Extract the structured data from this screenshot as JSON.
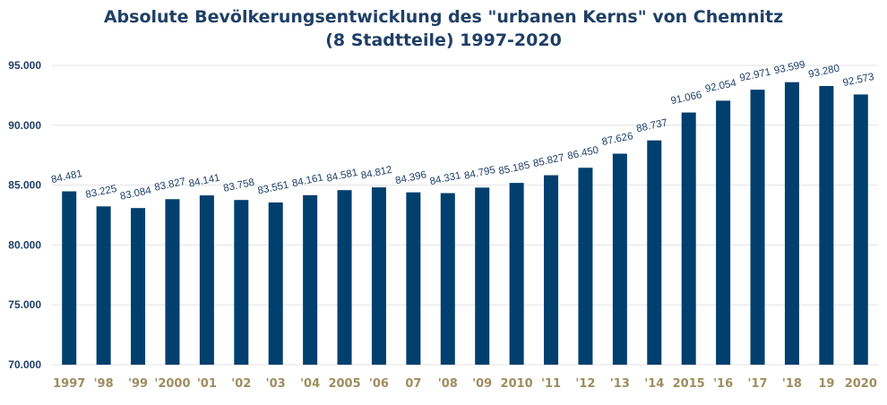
{
  "chart_data": {
    "type": "bar",
    "title_line1": "Absolute Bevölkerungsentwicklung des \"urbanen Kerns\" von Chemnitz",
    "title_line2": "(8 Stadtteile) 1997-2020",
    "categories": [
      "1997",
      "'98",
      "'99",
      "'2000",
      "'01",
      "'02",
      "'03",
      "'04",
      "2005",
      "'06",
      "07",
      "'08",
      "'09",
      "2010",
      "'11",
      "'12",
      "'13",
      "'14",
      "2015",
      "'16",
      "'17",
      "'18",
      "19",
      "2020"
    ],
    "values": [
      84481,
      83225,
      83084,
      83827,
      84141,
      83758,
      83551,
      84161,
      84581,
      84812,
      84396,
      84331,
      84795,
      85185,
      85827,
      86450,
      87626,
      88737,
      91066,
      92054,
      92971,
      93599,
      93280,
      92573
    ],
    "value_labels": [
      "84.481",
      "83.225",
      "83.084",
      "83.827",
      "84.141",
      "83.758",
      "83.551",
      "84.161",
      "84.581",
      "84.812",
      "84.396",
      "84.331",
      "84.795",
      "85.185",
      "85.827",
      "86.450",
      "87.626",
      "88.737",
      "91.066",
      "92.054",
      "92.971",
      "93.599",
      "93.280",
      "92.573"
    ],
    "ylim": [
      70000,
      95000
    ],
    "yticks": [
      70000,
      75000,
      80000,
      85000,
      90000,
      95000
    ],
    "ytick_labels": [
      "70.000",
      "75.000",
      "80.000",
      "85.000",
      "90.000",
      "95.000"
    ],
    "grid": true,
    "colors": {
      "bar": "#003f6e",
      "title": "#1f3f66",
      "xtick": "#a08c5e",
      "grid": "#e3e3e3"
    }
  }
}
